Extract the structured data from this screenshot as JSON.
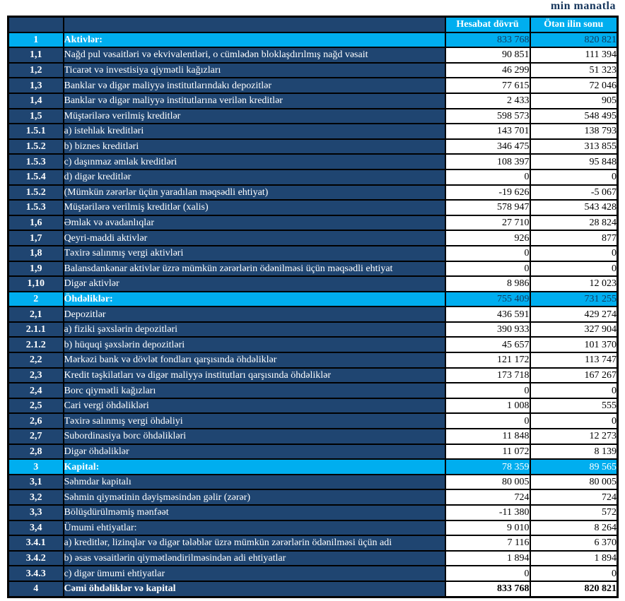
{
  "page": {
    "unit_label": "min manatla"
  },
  "table": {
    "columns": [
      "",
      "",
      "Hesabat dövrü",
      "Ötən ilin sonu"
    ],
    "rows": [
      {
        "num": "1",
        "label": "Aktivlər:",
        "v1": "833 768",
        "v2": "820 821",
        "type": "section"
      },
      {
        "num": "1,1",
        "label": "Nağd pul vəsaitləri və ekvivalentləri, o cümlədən bloklaşdırılmış nağd vəsait",
        "v1": "90 851",
        "v2": "111 394",
        "type": "item"
      },
      {
        "num": "1,2",
        "label": "Ticarət və investisiya qiymətli kağızları",
        "v1": "46 299",
        "v2": "51 323",
        "type": "item"
      },
      {
        "num": "1,3",
        "label": "Banklar və digər maliyyə institutlarındakı depozitlər",
        "v1": "77 615",
        "v2": "72 046",
        "type": "item"
      },
      {
        "num": "1,4",
        "label": "Banklar və digər maliyyə institutlarına verilən kreditlər",
        "v1": "2 433",
        "v2": "905",
        "type": "item"
      },
      {
        "num": "1,5",
        "label": "Müştərilərə verilmiş kreditlər",
        "v1": "598 573",
        "v2": "548 495",
        "type": "item"
      },
      {
        "num": "1.5.1",
        "label": "a) istehlak kreditləri",
        "v1": "143 701",
        "v2": "138 793",
        "type": "item"
      },
      {
        "num": "1.5.2",
        "label": "b) biznes kreditləri",
        "v1": "346 475",
        "v2": "313 855",
        "type": "item"
      },
      {
        "num": "1.5.3",
        "label": "c) daşınmaz əmlak kreditləri",
        "v1": "108 397",
        "v2": "95 848",
        "type": "item"
      },
      {
        "num": "1.5.4",
        "label": "d) digər kreditlər",
        "v1": "0",
        "v2": "0",
        "type": "item"
      },
      {
        "num": "1.5.2",
        "label": "(Mümkün zərərlər üçün yaradılan məqsədli ehtiyat)",
        "v1": "-19 626",
        "v2": "-5 067",
        "type": "item"
      },
      {
        "num": "1.5.3",
        "label": "Müştərilərə verilmiş kreditlər (xalis)",
        "v1": "578 947",
        "v2": "543 428",
        "type": "item"
      },
      {
        "num": "1,6",
        "label": "Əmlak və avadanlıqlar",
        "v1": "27 710",
        "v2": "28 824",
        "type": "item"
      },
      {
        "num": "1,7",
        "label": "Qeyri-maddi aktivlər",
        "v1": "926",
        "v2": "877",
        "type": "item"
      },
      {
        "num": "1,8",
        "label": "Təxirə salınmış vergi aktivləri",
        "v1": "0",
        "v2": "0",
        "type": "item"
      },
      {
        "num": "1,9",
        "label": "Balansdankənar aktivlər üzrə mümkün zərərlərin ödənilməsi üçün məqsədli ehtiyat",
        "v1": "0",
        "v2": "0",
        "type": "item"
      },
      {
        "num": "1,10",
        "label": "Digər aktivlər",
        "v1": "8 986",
        "v2": "12 023",
        "type": "item"
      },
      {
        "num": "2",
        "label": "Öhdəliklər:",
        "v1": "755 409",
        "v2": "731 255",
        "type": "section"
      },
      {
        "num": "2,1",
        "label": "Depozitlər",
        "v1": "436 591",
        "v2": "429 274",
        "type": "item"
      },
      {
        "num": "2.1.1",
        "label": "a) fiziki şəxslərin depozitləri",
        "v1": "390 933",
        "v2": "327 904",
        "type": "item"
      },
      {
        "num": "2.1.2",
        "label": "b) hüquqi şəxslərin depozitləri",
        "v1": "45 657",
        "v2": "101 370",
        "type": "item"
      },
      {
        "num": "2,2",
        "label": "Mərkəzi bank və dövlət fondları qarşısında öhdəliklər",
        "v1": "121 172",
        "v2": "113 747",
        "type": "item"
      },
      {
        "num": "2,3",
        "label": "Kredit təşkilatları və digər maliyyə institutları qarşısında öhdəliklər",
        "v1": "173 718",
        "v2": "167 267",
        "type": "item"
      },
      {
        "num": "2,4",
        "label": "Borc qiymətli kağızları",
        "v1": "0",
        "v2": "0",
        "type": "item"
      },
      {
        "num": "2,5",
        "label": "Cari vergi öhdəlikləri",
        "v1": "1 008",
        "v2": "555",
        "type": "item"
      },
      {
        "num": "2,6",
        "label": "Təxirə salınmış vergi öhdəliyi",
        "v1": "0",
        "v2": "0",
        "type": "item"
      },
      {
        "num": "2,7",
        "label": "Subordinasiya borc öhdəlikləri",
        "v1": "11 848",
        "v2": "12 273",
        "type": "item"
      },
      {
        "num": "2,8",
        "label": "Digər öhdəliklər",
        "v1": "11 072",
        "v2": "8 139",
        "type": "item"
      },
      {
        "num": "3",
        "label": "Kapital:",
        "v1": "78 359",
        "v2": "89 565",
        "type": "section",
        "values_white": true
      },
      {
        "num": "3,1",
        "label": "Səhmdar kapitalı",
        "v1": "80 005",
        "v2": "80 005",
        "type": "item"
      },
      {
        "num": "3,2",
        "label": "Səhmin qiymətinin dəyişməsindən gəlir (zərər)",
        "v1": "724",
        "v2": "724",
        "type": "item"
      },
      {
        "num": "3,3",
        "label": "Bölüşdürülməmiş mənfəət",
        "v1": "-11 380",
        "v2": "572",
        "type": "item"
      },
      {
        "num": "3,4",
        "label": "Ümumi ehtiyatlar:",
        "v1": "9 010",
        "v2": "8 264",
        "type": "item"
      },
      {
        "num": "3.4.1",
        "label": "a) kreditlər, lizinqlər və digər tələblər üzrə mümkün zərərlərin ödənilməsi üçün adi",
        "v1": "7 116",
        "v2": "6 370",
        "type": "item"
      },
      {
        "num": "3.4.2",
        "label": "b) əsas vəsaitlərin qiymətləndirilməsindən adi ehtiyatlar",
        "v1": "1 894",
        "v2": "1 894",
        "type": "item"
      },
      {
        "num": "3.4.3",
        "label": "c) digər ümumi ehtiyatlar",
        "v1": "0",
        "v2": "0",
        "type": "item"
      },
      {
        "num": "4",
        "label": "Cəmi öhdəliklər və kapital",
        "v1": "833 768",
        "v2": "820 821",
        "type": "total"
      }
    ],
    "colors": {
      "navy": "#1f4571",
      "cyan": "#00aeef",
      "border": "#000000",
      "unit_text": "#17375d"
    }
  }
}
